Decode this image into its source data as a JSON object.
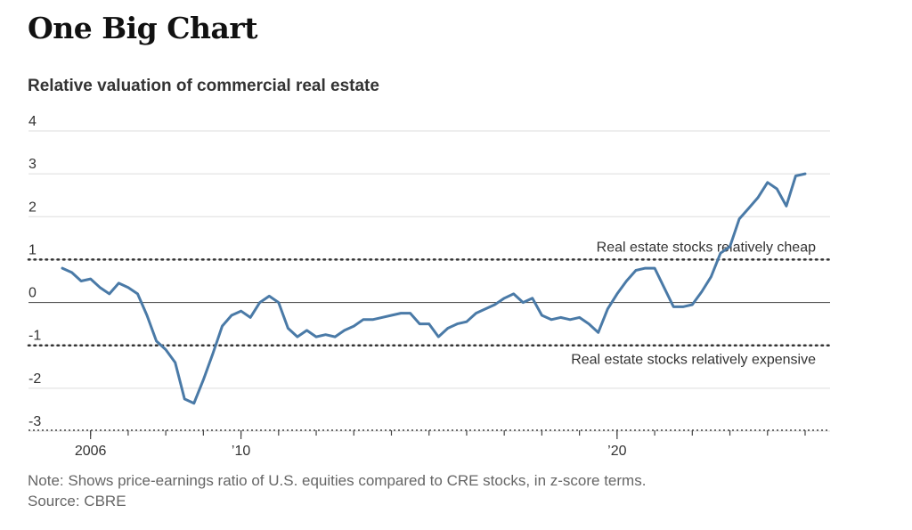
{
  "header": {
    "title": "One Big Chart",
    "subtitle": "Relative valuation of commercial real estate"
  },
  "footer": {
    "note": "Note: Shows price-earnings ratio of U.S. equities compared to CRE stocks, in z-score terms.",
    "source": "Source: CBRE"
  },
  "colors": {
    "line": "#4a7aa7",
    "grid": "#dddddd",
    "zero_line": "#555555",
    "threshold": "#333333",
    "text": "#333333"
  },
  "chart_data": {
    "type": "line",
    "title": "Relative valuation of commercial real estate",
    "xlabel": "",
    "ylabel": "",
    "ylim": [
      -3,
      4
    ],
    "xlim": [
      2005.5,
      2025.25
    ],
    "y_ticks": [
      4,
      3,
      2,
      1,
      0,
      -1,
      -2,
      -3
    ],
    "x_tick_labels": [
      {
        "x": 2006,
        "label": "2006"
      },
      {
        "x": 2010,
        "label": "’10"
      },
      {
        "x": 2020,
        "label": "’20"
      }
    ],
    "x_minor_ticks": [
      2006,
      2007,
      2008,
      2009,
      2010,
      2011,
      2012,
      2013,
      2014,
      2015,
      2016,
      2017,
      2018,
      2019,
      2020,
      2021,
      2022,
      2023,
      2024,
      2025
    ],
    "reference_lines": [
      {
        "y": 1,
        "style": "dotted",
        "label": "Real estate stocks relatively cheap",
        "label_position": "above"
      },
      {
        "y": -1,
        "style": "dotted",
        "label": "Real estate stocks relatively expensive",
        "label_position": "below"
      }
    ],
    "grid": true,
    "series": [
      {
        "x": [
          2005.25,
          2005.5,
          2005.75,
          2006.0,
          2006.25,
          2006.5,
          2006.75,
          2007.0,
          2007.25,
          2007.5,
          2007.75,
          2008.0,
          2008.25,
          2008.5,
          2008.75,
          2009.0,
          2009.25,
          2009.5,
          2009.75,
          2010.0,
          2010.25,
          2010.5,
          2010.75,
          2011.0,
          2011.25,
          2011.5,
          2011.75,
          2012.0,
          2012.25,
          2012.5,
          2012.75,
          2013.0,
          2013.25,
          2013.5,
          2013.75,
          2014.0,
          2014.25,
          2014.5,
          2014.75,
          2015.0,
          2015.25,
          2015.5,
          2015.75,
          2016.0,
          2016.25,
          2016.5,
          2016.75,
          2017.0,
          2017.25,
          2017.5,
          2017.75,
          2018.0,
          2018.25,
          2018.5,
          2018.75,
          2019.0,
          2019.25,
          2019.5,
          2019.75,
          2020.0,
          2020.25,
          2020.5,
          2020.75,
          2021.0,
          2021.25,
          2021.5,
          2021.75,
          2022.0,
          2022.25,
          2022.5,
          2022.75,
          2023.0,
          2023.25,
          2023.5,
          2023.75,
          2024.0,
          2024.25,
          2024.5,
          2024.75,
          2025.0
        ],
        "y": [
          0.8,
          0.7,
          0.5,
          0.55,
          0.35,
          0.2,
          0.45,
          0.35,
          0.2,
          -0.3,
          -0.9,
          -1.1,
          -1.4,
          -2.25,
          -2.35,
          -1.8,
          -1.2,
          -0.55,
          -0.3,
          -0.2,
          -0.35,
          0.0,
          0.15,
          0.0,
          -0.6,
          -0.8,
          -0.65,
          -0.8,
          -0.75,
          -0.8,
          -0.65,
          -0.55,
          -0.4,
          -0.4,
          -0.35,
          -0.3,
          -0.25,
          -0.25,
          -0.5,
          -0.5,
          -0.8,
          -0.6,
          -0.5,
          -0.45,
          -0.25,
          -0.15,
          -0.05,
          0.1,
          0.2,
          0.0,
          0.1,
          -0.3,
          -0.4,
          -0.35,
          -0.4,
          -0.35,
          -0.5,
          -0.7,
          -0.15,
          0.2,
          0.5,
          0.75,
          0.8,
          0.8,
          0.35,
          -0.1,
          -0.1,
          -0.05,
          0.25,
          0.6,
          1.15,
          1.3,
          1.95,
          2.2,
          2.45,
          2.8,
          2.65,
          2.25,
          2.95,
          3.0
        ]
      }
    ]
  }
}
